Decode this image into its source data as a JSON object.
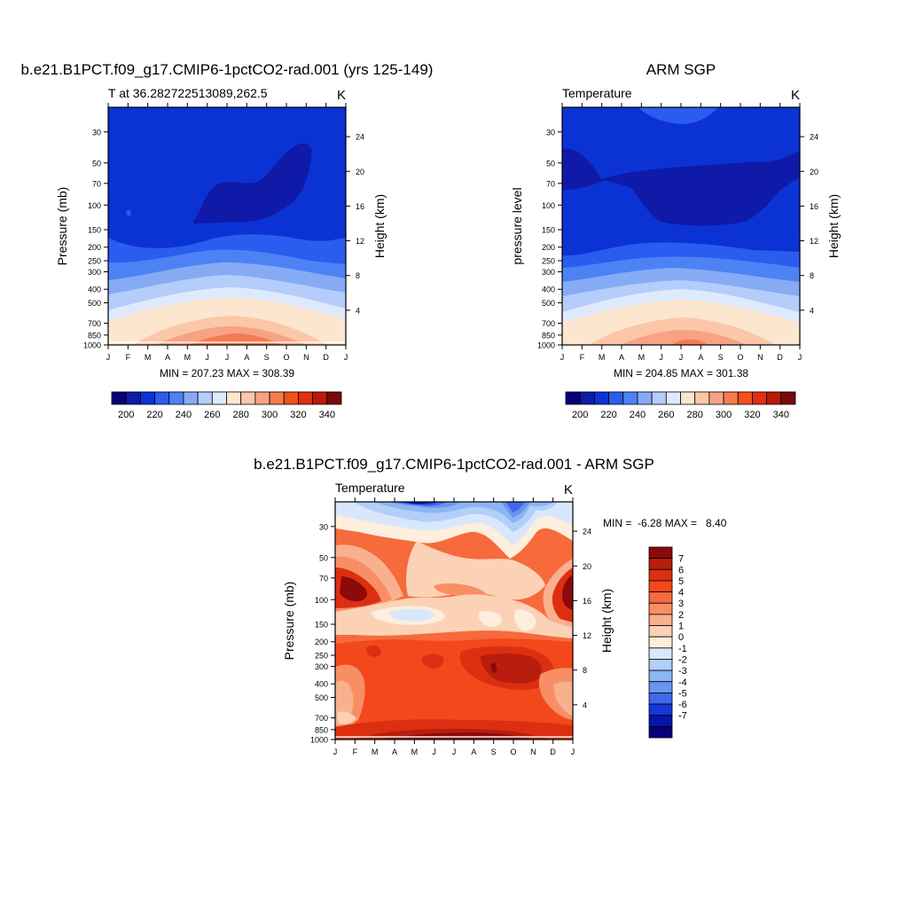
{
  "chart_data": [
    {
      "type": "heatmap",
      "title": "b.e21.B1PCT.f09_g17.CMIP6-1pctCO2-rad.001 (yrs 125-149)",
      "left_label": "T at 36.282722513089,262.5",
      "units": "K",
      "xlabel": "",
      "ylabel": "Pressure (mb)",
      "ylabel_right": "Height (km)",
      "months": [
        "J",
        "F",
        "M",
        "A",
        "M",
        "J",
        "J",
        "A",
        "S",
        "O",
        "N",
        "D",
        "J"
      ],
      "pressure_ticks": [
        30,
        50,
        70,
        100,
        150,
        200,
        250,
        300,
        400,
        500,
        700,
        850,
        1000
      ],
      "height_ticks": [
        24,
        20,
        16,
        12,
        8,
        4
      ],
      "stats": "MIN = 207.23 MAX = 308.39",
      "min": 207.23,
      "max": 308.39,
      "ylim": [
        1000,
        20
      ],
      "colorbar": {
        "levels": [
          195,
          200,
          205,
          210,
          215,
          220,
          225,
          230,
          235,
          240,
          245,
          250,
          255,
          260,
          265,
          270,
          275,
          280,
          285,
          290,
          295,
          300,
          305,
          310,
          315,
          320,
          325,
          330,
          335,
          340,
          345
        ],
        "tick_labels": [
          "200",
          "220",
          "240",
          "260",
          "280",
          "300",
          "320",
          "340"
        ],
        "colors": [
          "#06007a",
          "#0f1aa8",
          "#0b33d4",
          "#2a5cf0",
          "#4d82f5",
          "#86abf5",
          "#b5cdfb",
          "#deeafc",
          "#fde6cf",
          "#fbc7a7",
          "#f7a285",
          "#f67a50",
          "#f4501c",
          "#df3010",
          "#b91a0a",
          "#7a0a0a"
        ]
      }
    },
    {
      "type": "heatmap",
      "title": "ARM SGP",
      "left_label": "Temperature",
      "units": "K",
      "xlabel": "",
      "ylabel": "pressure level",
      "ylabel_right": "Height (km)",
      "months": [
        "J",
        "F",
        "M",
        "A",
        "M",
        "J",
        "J",
        "A",
        "S",
        "O",
        "N",
        "D",
        "J"
      ],
      "pressure_ticks": [
        30,
        50,
        70,
        100,
        150,
        200,
        250,
        300,
        400,
        500,
        700,
        850,
        1000
      ],
      "height_ticks": [
        24,
        20,
        16,
        12,
        8,
        4
      ],
      "stats": "MIN = 204.85 MAX = 301.38",
      "min": 204.85,
      "max": 301.38,
      "ylim": [
        1000,
        20
      ],
      "colorbar": {
        "tick_labels": [
          "200",
          "220",
          "240",
          "260",
          "280",
          "300",
          "320",
          "340"
        ],
        "colors": [
          "#06007a",
          "#0f1aa8",
          "#0b33d4",
          "#2a5cf0",
          "#4d82f5",
          "#86abf5",
          "#b5cdfb",
          "#deeafc",
          "#fde6cf",
          "#fbc7a7",
          "#f7a285",
          "#f67a50",
          "#f4501c",
          "#df3010",
          "#b91a0a",
          "#7a0a0a"
        ]
      }
    },
    {
      "type": "heatmap",
      "title": "b.e21.B1PCT.f09_g17.CMIP6-1pctCO2-rad.001 - ARM SGP",
      "left_label": "Temperature",
      "units": "K",
      "xlabel": "",
      "ylabel": "Pressure (mb)",
      "ylabel_right": "Height (km)",
      "months": [
        "J",
        "F",
        "M",
        "A",
        "M",
        "J",
        "J",
        "A",
        "S",
        "O",
        "N",
        "D",
        "J"
      ],
      "pressure_ticks": [
        30,
        50,
        70,
        100,
        150,
        200,
        250,
        300,
        400,
        500,
        700,
        850,
        1000
      ],
      "height_ticks": [
        24,
        20,
        16,
        12,
        8,
        4
      ],
      "stats": "MIN =  -6.28 MAX =   8.40",
      "min": -6.28,
      "max": 8.4,
      "ylim": [
        1000,
        20
      ],
      "colorbar": {
        "tick_labels": [
          "7",
          "6",
          "5",
          "4",
          "3",
          "2",
          "1",
          "0",
          "-1",
          "-2",
          "-3",
          "-4",
          "-5",
          "-6",
          "-7"
        ],
        "colors": [
          "#8b0a0a",
          "#b81d0d",
          "#dc2f11",
          "#f2481b",
          "#f66a3c",
          "#f88f64",
          "#f9b08e",
          "#fcd2b7",
          "#fdeedd",
          "#d8e7fb",
          "#b2cff8",
          "#8cb5f4",
          "#6b95ee",
          "#3f68eb",
          "#1538dc",
          "#0716a8",
          "#05007a"
        ]
      }
    }
  ]
}
